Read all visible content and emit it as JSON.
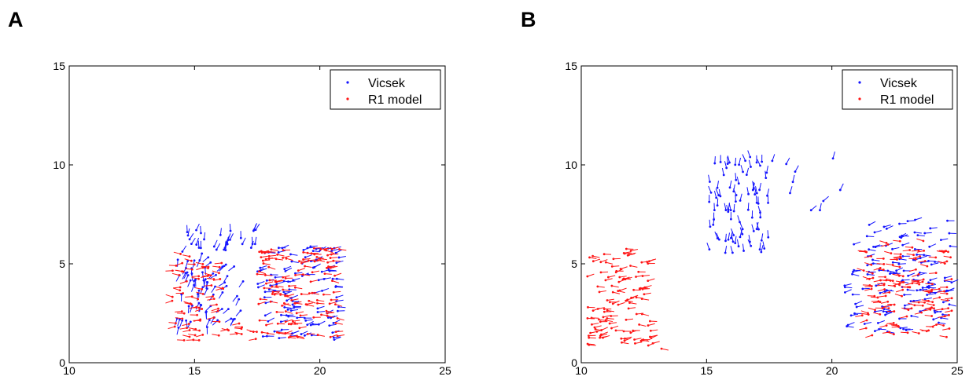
{
  "panels": [
    {
      "letter": "A"
    },
    {
      "letter": "B"
    }
  ],
  "colors": {
    "vicsek": "#1515ff",
    "r1": "#ff1515",
    "axes": "#000000"
  },
  "chart_data": [
    {
      "type": "scatter",
      "panel": "A",
      "title": "",
      "xlabel": "",
      "ylabel": "",
      "xlim": [
        10,
        25
      ],
      "ylim": [
        0,
        15
      ],
      "xticks": [
        10,
        15,
        20,
        25
      ],
      "yticks": [
        0,
        5,
        10,
        15
      ],
      "grid": false,
      "legend_position": "top-right",
      "series": [
        {
          "name": "Vicsek",
          "color": "#1515ff",
          "marker": "point with short direction line",
          "regions": [
            {
              "x": [
                14.4,
                17.6
              ],
              "y": [
                5.6,
                6.8
              ],
              "heading_deg": 75,
              "count": 30
            },
            {
              "x": [
                14.3,
                15.6
              ],
              "y": [
                1.7,
                5.6
              ],
              "heading_deg": 260,
              "count": 40
            },
            {
              "x": [
                15.5,
                17.0
              ],
              "y": [
                2.0,
                5.5
              ],
              "heading_deg": 230,
              "count": 28
            },
            {
              "x": [
                17.5,
                20.8
              ],
              "y": [
                1.1,
                6.0
              ],
              "heading_deg": 10,
              "count": 110
            }
          ]
        },
        {
          "name": "R1 model",
          "color": "#ff1515",
          "marker": "point with short direction line",
          "regions": [
            {
              "x": [
                14.1,
                16.2
              ],
              "y": [
                1.1,
                5.7
              ],
              "heading_deg": 180,
              "count": 70
            },
            {
              "x": [
                16.3,
                17.5
              ],
              "y": [
                1.2,
                2.2
              ],
              "heading_deg": 180,
              "count": 10
            },
            {
              "x": [
                17.5,
                20.8
              ],
              "y": [
                1.2,
                5.8
              ],
              "heading_deg": 0,
              "count": 130
            }
          ]
        }
      ]
    },
    {
      "type": "scatter",
      "panel": "B",
      "title": "",
      "xlabel": "",
      "ylabel": "",
      "xlim": [
        10,
        25
      ],
      "ylim": [
        0,
        15
      ],
      "xticks": [
        10,
        15,
        20,
        25
      ],
      "yticks": [
        0,
        5,
        10,
        15
      ],
      "grid": false,
      "legend_position": "top-right",
      "series": [
        {
          "name": "Vicsek",
          "color": "#1515ff",
          "marker": "point with short direction line",
          "regions": [
            {
              "x": [
                15.1,
                17.5
              ],
              "y": [
                5.5,
                10.4
              ],
              "heading_deg": 95,
              "count": 85
            },
            {
              "x": [
                17.5,
                21.0
              ],
              "y": [
                7.5,
                10.5
              ],
              "heading_deg": 60,
              "count": 10
            },
            {
              "x": [
                21.0,
                24.8
              ],
              "y": [
                6.2,
                7.3
              ],
              "heading_deg": 10,
              "count": 18
            },
            {
              "x": [
                20.5,
                24.8
              ],
              "y": [
                1.5,
                6.0
              ],
              "heading_deg": 5,
              "count": 110
            }
          ]
        },
        {
          "name": "R1 model",
          "color": "#ff1515",
          "marker": "point with short direction line",
          "regions": [
            {
              "x": [
                10.2,
                12.8
              ],
              "y": [
                0.8,
                5.8
              ],
              "heading_deg": 5,
              "count": 110
            },
            {
              "x": [
                12.0,
                13.3
              ],
              "y": [
                0.7,
                1.4
              ],
              "heading_deg": 5,
              "count": 4
            },
            {
              "x": [
                21.2,
                24.8
              ],
              "y": [
                1.3,
                6.2
              ],
              "heading_deg": 180,
              "count": 140
            }
          ]
        }
      ]
    }
  ]
}
